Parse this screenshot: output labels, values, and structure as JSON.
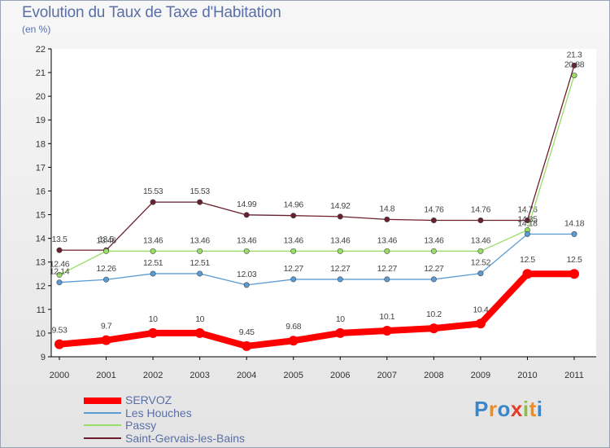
{
  "chart_data": {
    "type": "line",
    "title": "Evolution du Taux de Taxe d'Habitation",
    "subtitle": "(en %)",
    "xlabel": "",
    "ylabel": "",
    "x": [
      "2000",
      "2001",
      "2002",
      "2003",
      "2004",
      "2005",
      "2006",
      "2007",
      "2008",
      "2009",
      "2010",
      "2011"
    ],
    "ylim": [
      9,
      22
    ],
    "yticks": [
      "9",
      "10",
      "11",
      "12",
      "13",
      "14",
      "15",
      "16",
      "17",
      "18",
      "19",
      "20",
      "21",
      "22"
    ],
    "grid": false,
    "legend_position": "bottom-left",
    "series": [
      {
        "name": "SERVOZ",
        "color": "#ff0000",
        "values": [
          9.53,
          9.7,
          10,
          10,
          9.45,
          9.68,
          10,
          10.1,
          10.2,
          10.4,
          12.5,
          12.5
        ],
        "labels": [
          "9.53",
          "9.7",
          "10",
          "10",
          "9.45",
          "9.68",
          "10",
          "10.1",
          "10.2",
          "10.4",
          "12.5",
          "12.5"
        ]
      },
      {
        "name": "Les Houches",
        "color": "#5b9bd5",
        "values": [
          12.14,
          12.26,
          12.51,
          12.51,
          12.03,
          12.27,
          12.27,
          12.27,
          12.27,
          12.52,
          14.18,
          14.18
        ],
        "labels": [
          "12.14",
          "12.26",
          "12.51",
          "12.51",
          "12.03",
          "12.27",
          "12.27",
          "12.27",
          "12.27",
          "12.52",
          "14.18",
          "14.18"
        ]
      },
      {
        "name": "Passy",
        "color": "#99dd66",
        "values": [
          12.46,
          13.46,
          13.46,
          13.46,
          13.46,
          13.46,
          13.46,
          13.46,
          13.46,
          13.46,
          14.35,
          20.88
        ],
        "labels": [
          "12.46",
          "13.46",
          "13.46",
          "13.46",
          "13.46",
          "13.46",
          "13.46",
          "13.46",
          "13.46",
          "13.46",
          "14.35",
          "20.88"
        ]
      },
      {
        "name": "Saint-Gervais-les-Bains",
        "color": "#6b1f2e",
        "values": [
          13.5,
          13.5,
          15.53,
          15.53,
          14.99,
          14.96,
          14.92,
          14.8,
          14.76,
          14.76,
          14.76,
          21.3
        ],
        "labels": [
          "13.5",
          "13.5",
          "15.53",
          "15.53",
          "14.99",
          "14.96",
          "14.92",
          "14.8",
          "14.76",
          "14.76",
          "14.76",
          "21.3"
        ]
      }
    ]
  },
  "logo": {
    "letters": [
      "P",
      "r",
      "o",
      "x",
      "i",
      "t",
      "i"
    ],
    "colors": [
      "#3a86c8",
      "#f08c1e",
      "#3a86c8",
      "#e23c28",
      "#8cbf3c",
      "#f08c1e",
      "#3a86c8"
    ]
  }
}
